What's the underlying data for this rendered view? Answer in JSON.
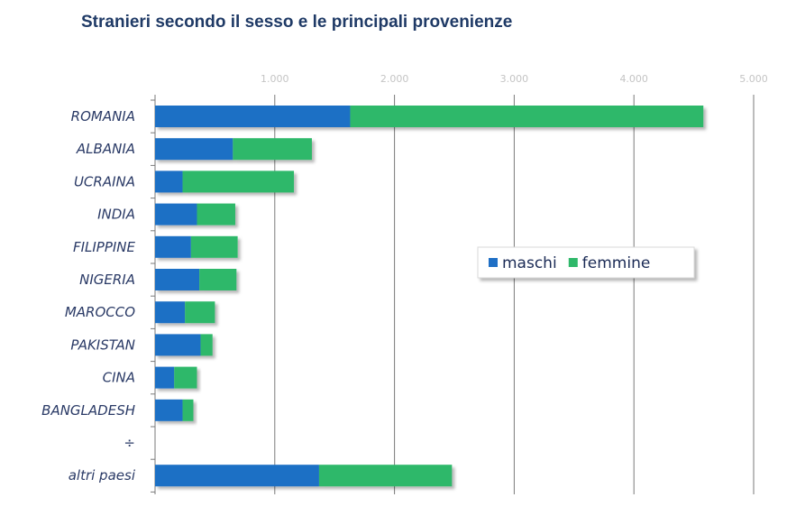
{
  "chart_data": {
    "type": "bar",
    "orientation": "horizontal",
    "stacked": true,
    "title": "Stranieri secondo il sesso e le principali provenienze",
    "categories": [
      "ROMANIA",
      "ALBANIA",
      "UCRAINA",
      "INDIA",
      "FILIPPINE",
      "NIGERIA",
      "MAROCCO",
      "PAKISTAN",
      "CINA",
      "BANGLADESH",
      "÷",
      "altri paesi"
    ],
    "series": [
      {
        "name": "maschi",
        "color": "#1f6fc5",
        "values": [
          1630,
          650,
          230,
          350,
          300,
          370,
          250,
          380,
          160,
          230,
          null,
          1370
        ]
      },
      {
        "name": "femmine",
        "color": "#2fb86a",
        "values": [
          2950,
          660,
          930,
          320,
          390,
          310,
          250,
          100,
          190,
          90,
          null,
          1110
        ]
      }
    ],
    "xlim": [
      0,
      5000
    ],
    "xticks": [
      "1.000",
      "2.000",
      "3.000",
      "4.000",
      "5.000"
    ],
    "xtick_values": [
      1000,
      2000,
      3000,
      4000,
      5000
    ],
    "grid": true,
    "legend": "right-center",
    "xlabel": "",
    "ylabel": ""
  }
}
